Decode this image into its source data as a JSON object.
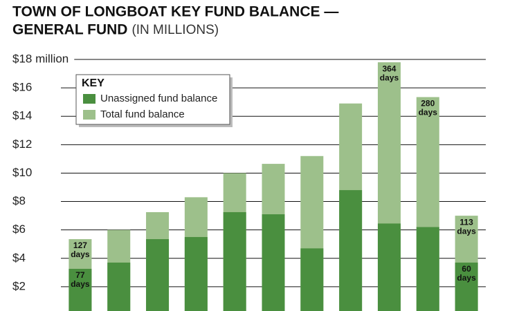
{
  "chart_data": {
    "type": "overlap-bar",
    "title_lines": [
      "TOWN OF LONGBOAT KEY FUND BALANCE —",
      "GENERAL FUND"
    ],
    "subtitle": "(IN MILLIONS)",
    "legend_title": "KEY",
    "legend_position": "upper left",
    "grid": true,
    "ylim": [
      0,
      18
    ],
    "yticks": [
      {
        "value": 2,
        "label": "$2"
      },
      {
        "value": 4,
        "label": "$4"
      },
      {
        "value": 6,
        "label": "$6"
      },
      {
        "value": 8,
        "label": "$8"
      },
      {
        "value": 10,
        "label": "$10"
      },
      {
        "value": 12,
        "label": "$12"
      },
      {
        "value": 14,
        "label": "$14"
      },
      {
        "value": 16,
        "label": "$16"
      },
      {
        "value": 18,
        "label": "$18 million"
      }
    ],
    "categories": [
      null,
      null,
      null,
      null,
      null,
      null,
      null,
      null,
      null,
      null,
      null
    ],
    "series": [
      {
        "name": "Total fund balance",
        "color": "#9dc08b",
        "values": [
          5.35,
          6.0,
          7.25,
          8.3,
          10.0,
          10.65,
          11.2,
          14.9,
          17.8,
          15.35,
          7.0
        ],
        "annotations": [
          [
            "127",
            "days"
          ],
          null,
          null,
          null,
          null,
          null,
          null,
          null,
          [
            "364",
            "days"
          ],
          [
            "280",
            "days"
          ],
          [
            "113",
            "days"
          ]
        ]
      },
      {
        "name": "Unassigned fund balance",
        "color": "#4a8f3f",
        "values": [
          3.26,
          3.7,
          5.35,
          5.5,
          7.25,
          7.1,
          4.7,
          8.8,
          6.45,
          6.2,
          3.7
        ],
        "annotations": [
          [
            "77",
            "days"
          ],
          null,
          null,
          null,
          null,
          null,
          null,
          null,
          null,
          null,
          [
            "60",
            "days"
          ]
        ]
      }
    ]
  }
}
